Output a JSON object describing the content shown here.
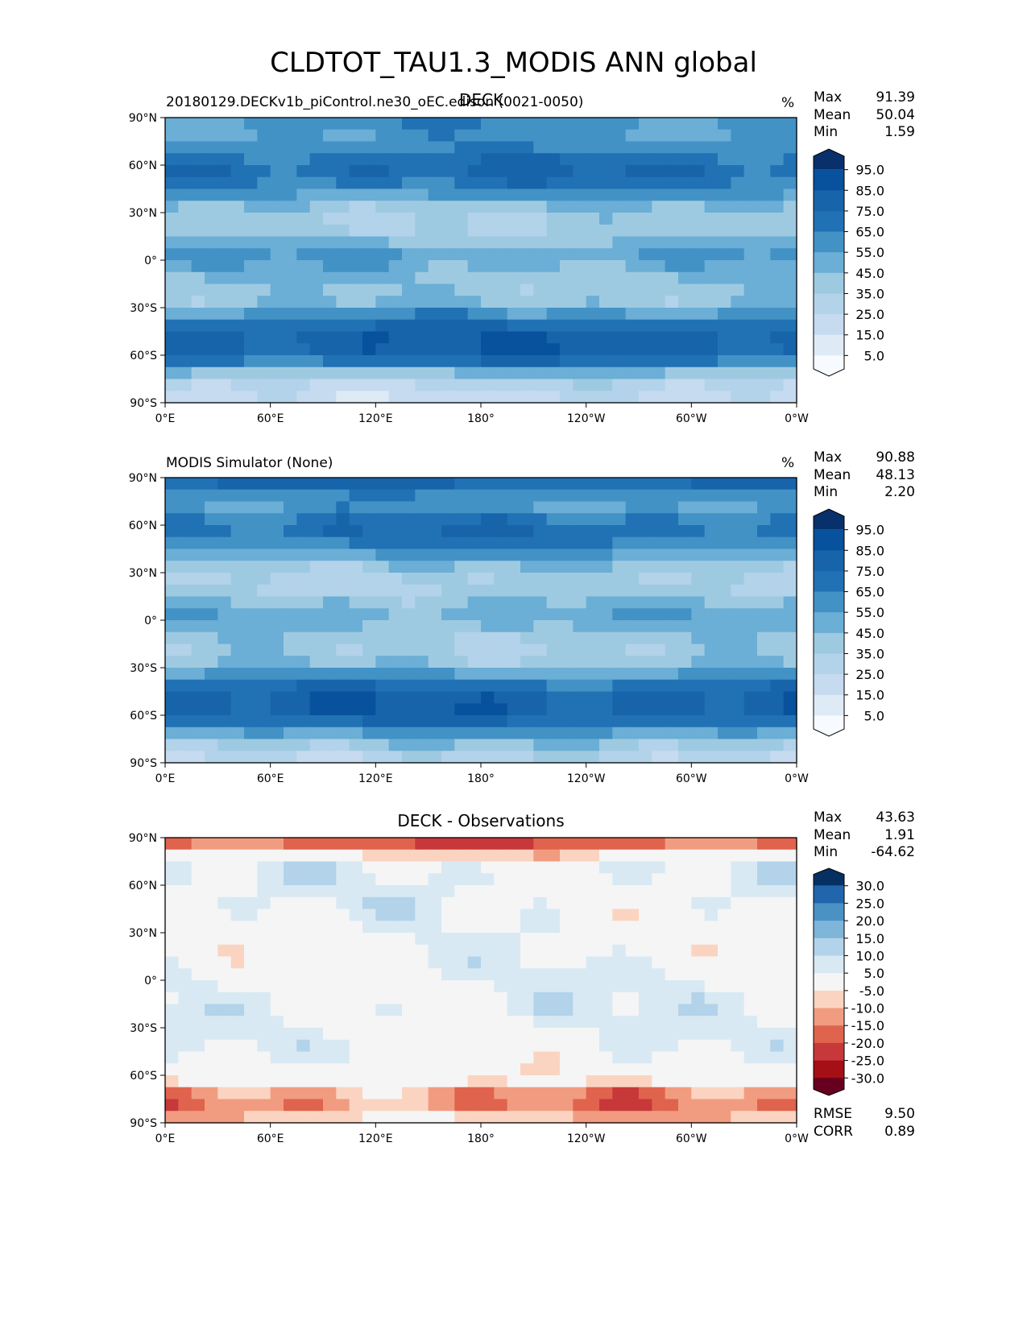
{
  "figure": {
    "title": "CLDTOT_TAU1.3_MODIS ANN global"
  },
  "axes": {
    "x_ticks": [
      "0°E",
      "60°E",
      "120°E",
      "180°",
      "120°W",
      "60°W",
      "0°W"
    ],
    "y_ticks": [
      "90°N",
      "60°N",
      "30°N",
      "0°",
      "30°S",
      "60°S",
      "90°S"
    ]
  },
  "colors": {
    "blues": [
      "#f7fbff",
      "#deebf7",
      "#c6dbef",
      "#b3d3ea",
      "#9ecae1",
      "#6baed6",
      "#4292c6",
      "#2171b5",
      "#1764ab",
      "#08519c",
      "#08306b"
    ],
    "rdbu": [
      "#67001f",
      "#a50f15",
      "#c7383a",
      "#e0634d",
      "#f19c80",
      "#fbd4c1",
      "#f5f5f5",
      "#d8e9f3",
      "#b3d3ea",
      "#7fb5d8",
      "#4a92c4",
      "#2166ac",
      "#053061"
    ]
  },
  "panels": [
    {
      "title": "DECK",
      "left_label": "20180129.DECKv1b_piControl.ne30_oEC.edison (0021-0050)",
      "units": "%",
      "stats": [
        {
          "label": "Max",
          "value": "91.39"
        },
        {
          "label": "Mean",
          "value": "50.04"
        },
        {
          "label": "Min",
          "value": "1.59"
        }
      ],
      "colorbar": [
        "95.0",
        "85.0",
        "75.0",
        "65.0",
        "55.0",
        "45.0",
        "35.0",
        "25.0",
        "15.0",
        "5.0"
      ],
      "mean": 50.04
    },
    {
      "title": "",
      "left_label": "MODIS Simulator (None)",
      "units": "%",
      "stats": [
        {
          "label": "Max",
          "value": "90.88"
        },
        {
          "label": "Mean",
          "value": "48.13"
        },
        {
          "label": "Min",
          "value": "2.20"
        }
      ],
      "colorbar": [
        "95.0",
        "85.0",
        "75.0",
        "65.0",
        "55.0",
        "45.0",
        "35.0",
        "25.0",
        "15.0",
        "5.0"
      ],
      "mean": 48.13
    },
    {
      "title": "DECK - Observations",
      "left_label": "",
      "units": "",
      "stats": [
        {
          "label": "Max",
          "value": "43.63"
        },
        {
          "label": "Mean",
          "value": "1.91"
        },
        {
          "label": "Min",
          "value": "-64.62"
        }
      ],
      "colorbar": [
        "30.0",
        "25.0",
        "20.0",
        "15.0",
        "10.0",
        "5.0",
        "-5.0",
        "-10.0",
        "-15.0",
        "-20.0",
        "-25.0",
        "-30.0"
      ],
      "extra": [
        {
          "label": "RMSE",
          "value": "9.50"
        },
        {
          "label": "CORR",
          "value": "0.89"
        }
      ]
    }
  ],
  "chart_data": [
    {
      "type": "heatmap",
      "title": "DECK",
      "subtitle": "20180129.DECKv1b_piControl.ne30_oEC.edison (0021-0050)",
      "units": "%",
      "xlim": [
        0,
        360
      ],
      "ylim": [
        -90,
        90
      ],
      "zlevels": [
        5,
        15,
        25,
        35,
        45,
        55,
        65,
        75,
        85,
        95
      ],
      "max": 91.39,
      "mean": 50.04,
      "min": 1.59,
      "zonal_mean_by_lat": {
        "lat": [
          -85,
          -75,
          -65,
          -55,
          -45,
          -35,
          -25,
          -15,
          -5,
          5,
          15,
          25,
          35,
          45,
          55,
          65,
          75,
          85
        ],
        "value": [
          22,
          30,
          68,
          82,
          80,
          60,
          42,
          40,
          50,
          55,
          40,
          35,
          45,
          65,
          75,
          70,
          55,
          60
        ]
      }
    },
    {
      "type": "heatmap",
      "title": "MODIS Simulator (None)",
      "units": "%",
      "xlim": [
        0,
        360
      ],
      "ylim": [
        -90,
        90
      ],
      "zlevels": [
        5,
        15,
        25,
        35,
        45,
        55,
        65,
        75,
        85,
        95
      ],
      "max": 90.88,
      "mean": 48.13,
      "min": 2.2,
      "zonal_mean_by_lat": {
        "lat": [
          -85,
          -75,
          -65,
          -55,
          -45,
          -35,
          -25,
          -15,
          -5,
          5,
          15,
          25,
          35,
          45,
          55,
          65,
          75,
          85
        ],
        "value": [
          30,
          48,
          70,
          82,
          78,
          58,
          40,
          36,
          46,
          52,
          40,
          34,
          44,
          62,
          72,
          66,
          52,
          75
        ]
      }
    },
    {
      "type": "heatmap",
      "title": "DECK - Observations",
      "xlim": [
        0,
        360
      ],
      "ylim": [
        -90,
        90
      ],
      "zlevels": [
        -30,
        -25,
        -20,
        -15,
        -10,
        -5,
        5,
        10,
        15,
        20,
        25,
        30
      ],
      "max": 43.63,
      "mean": 1.91,
      "min": -64.62,
      "rmse": 9.5,
      "corr": 0.89,
      "zonal_mean_by_lat": {
        "lat": [
          -85,
          -75,
          -65,
          -55,
          -45,
          -35,
          -25,
          -15,
          -5,
          5,
          15,
          25,
          35,
          45,
          55,
          65,
          75,
          85
        ],
        "value": [
          -8,
          -18,
          -2,
          0,
          3,
          3,
          4,
          5,
          4,
          4,
          2,
          2,
          2,
          4,
          4,
          5,
          4,
          -18
        ]
      }
    }
  ]
}
